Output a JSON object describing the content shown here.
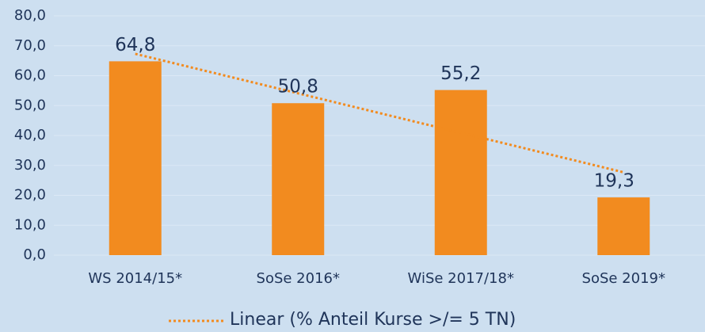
{
  "chart_data": {
    "type": "bar",
    "categories": [
      "WS 2014/15*",
      "SoSe 2016*",
      "WiSe 2017/18*",
      "SoSe 2019*"
    ],
    "values": [
      64.8,
      50.8,
      55.2,
      19.3
    ],
    "value_labels": [
      "64,8",
      "50,8",
      "55,2",
      "19,3"
    ],
    "color": "#f28b1f",
    "trend": {
      "name": "Linear (% Anteil Kurse >/= 5 TN)",
      "color": "#f28b1f",
      "values": [
        67.3,
        54.1,
        40.9,
        27.7
      ]
    },
    "ylim": [
      0,
      80
    ],
    "yticks": [
      {
        "value": 0,
        "label": "0,0"
      },
      {
        "value": 10,
        "label": "10,0"
      },
      {
        "value": 20,
        "label": "20,0"
      },
      {
        "value": 30,
        "label": "30,0"
      },
      {
        "value": 40,
        "label": "40,0"
      },
      {
        "value": 50,
        "label": "50,0"
      },
      {
        "value": 60,
        "label": "60,0"
      },
      {
        "value": 70,
        "label": "70,0"
      },
      {
        "value": 80,
        "label": "80,0"
      }
    ],
    "grid": true
  }
}
